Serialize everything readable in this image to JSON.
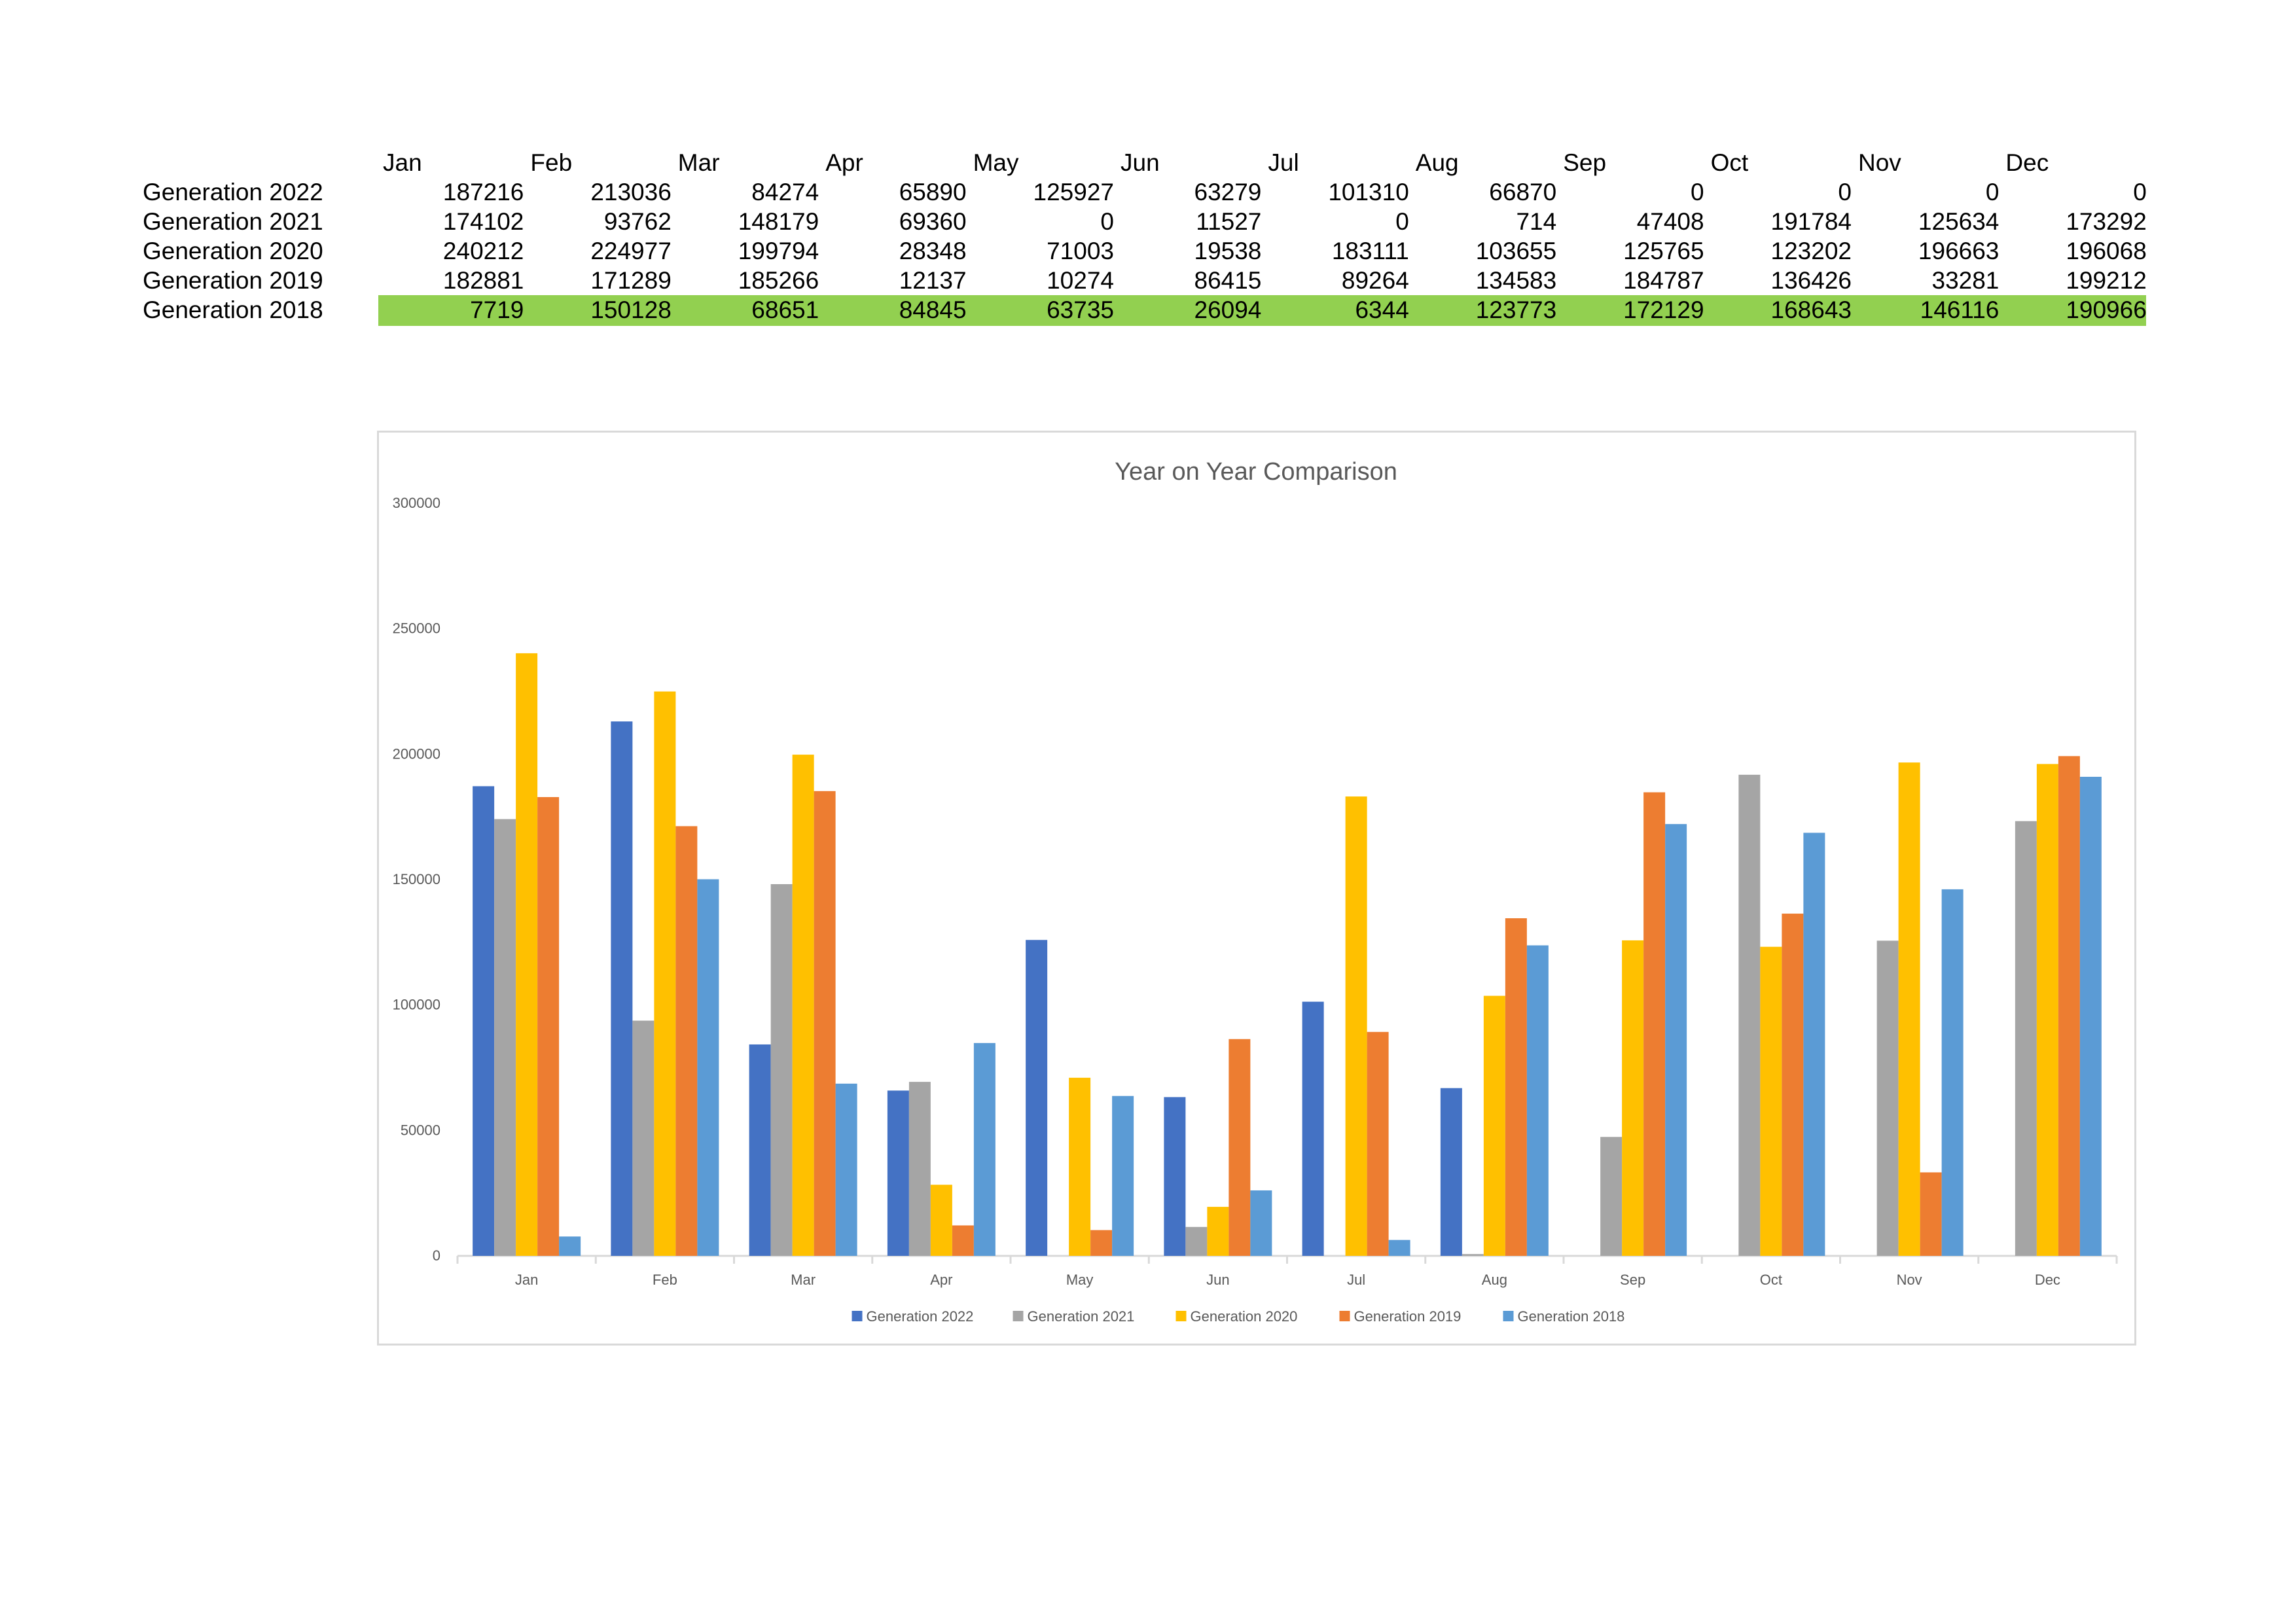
{
  "table": {
    "months": [
      "Jan",
      "Feb",
      "Mar",
      "Apr",
      "May",
      "Jun",
      "Jul",
      "Aug",
      "Sep",
      "Oct",
      "Nov",
      "Dec"
    ],
    "rows": [
      {
        "label": "Generation 2022",
        "values": [
          "187216",
          "213036",
          "84274",
          "65890",
          "125927",
          "63279",
          "101310",
          "66870",
          "0",
          "0",
          "0",
          "0"
        ]
      },
      {
        "label": "Generation 2021",
        "values": [
          "174102",
          "93762",
          "148179",
          "69360",
          "0",
          "11527",
          "0",
          "714",
          "47408",
          "191784",
          "125634",
          "173292"
        ]
      },
      {
        "label": "Generation 2020",
        "values": [
          "240212",
          "224977",
          "199794",
          "28348",
          "71003",
          "19538",
          "183111",
          "103655",
          "125765",
          "123202",
          "196663",
          "196068"
        ]
      },
      {
        "label": "Generation 2019",
        "values": [
          "182881",
          "171289",
          "185266",
          "12137",
          "10274",
          "86415",
          "89264",
          "134583",
          "184787",
          "136426",
          "33281",
          "199212"
        ]
      },
      {
        "label": "Generation 2018",
        "values": [
          "7719",
          "150128",
          "68651",
          "84845",
          "63735",
          "26094",
          "6344",
          "123773",
          "172129",
          "168643",
          "146116",
          "190966"
        ],
        "highlight": true
      }
    ],
    "highlight_color": "#92d050"
  },
  "chart_data": {
    "type": "bar",
    "title": "Year on Year Comparison",
    "categories": [
      "Jan",
      "Feb",
      "Mar",
      "Apr",
      "May",
      "Jun",
      "Jul",
      "Aug",
      "Sep",
      "Oct",
      "Nov",
      "Dec"
    ],
    "ylim": [
      0,
      300000
    ],
    "yticks": [
      0,
      50000,
      100000,
      150000,
      200000,
      250000,
      300000
    ],
    "grid": false,
    "legend": "bottom",
    "series": [
      {
        "name": "Generation 2022",
        "color": "#4472c4",
        "values": [
          187216,
          213036,
          84274,
          65890,
          125927,
          63279,
          101310,
          66870,
          0,
          0,
          0,
          0
        ]
      },
      {
        "name": "Generation 2021",
        "color": "#a5a5a5",
        "values": [
          174102,
          93762,
          148179,
          69360,
          0,
          11527,
          0,
          714,
          47408,
          191784,
          125634,
          173292
        ]
      },
      {
        "name": "Generation 2020",
        "color": "#ffc000",
        "values": [
          240212,
          224977,
          199794,
          28348,
          71003,
          19538,
          183111,
          103655,
          125765,
          123202,
          196663,
          196068
        ]
      },
      {
        "name": "Generation 2019",
        "color": "#ed7d31",
        "values": [
          182881,
          171289,
          185266,
          12137,
          10274,
          86415,
          89264,
          134583,
          184787,
          136426,
          33281,
          199212
        ]
      },
      {
        "name": "Generation 2018",
        "color": "#5b9bd5",
        "values": [
          7719,
          150128,
          68651,
          84845,
          63735,
          26094,
          6344,
          123773,
          172129,
          168643,
          146116,
          190966
        ]
      }
    ]
  }
}
